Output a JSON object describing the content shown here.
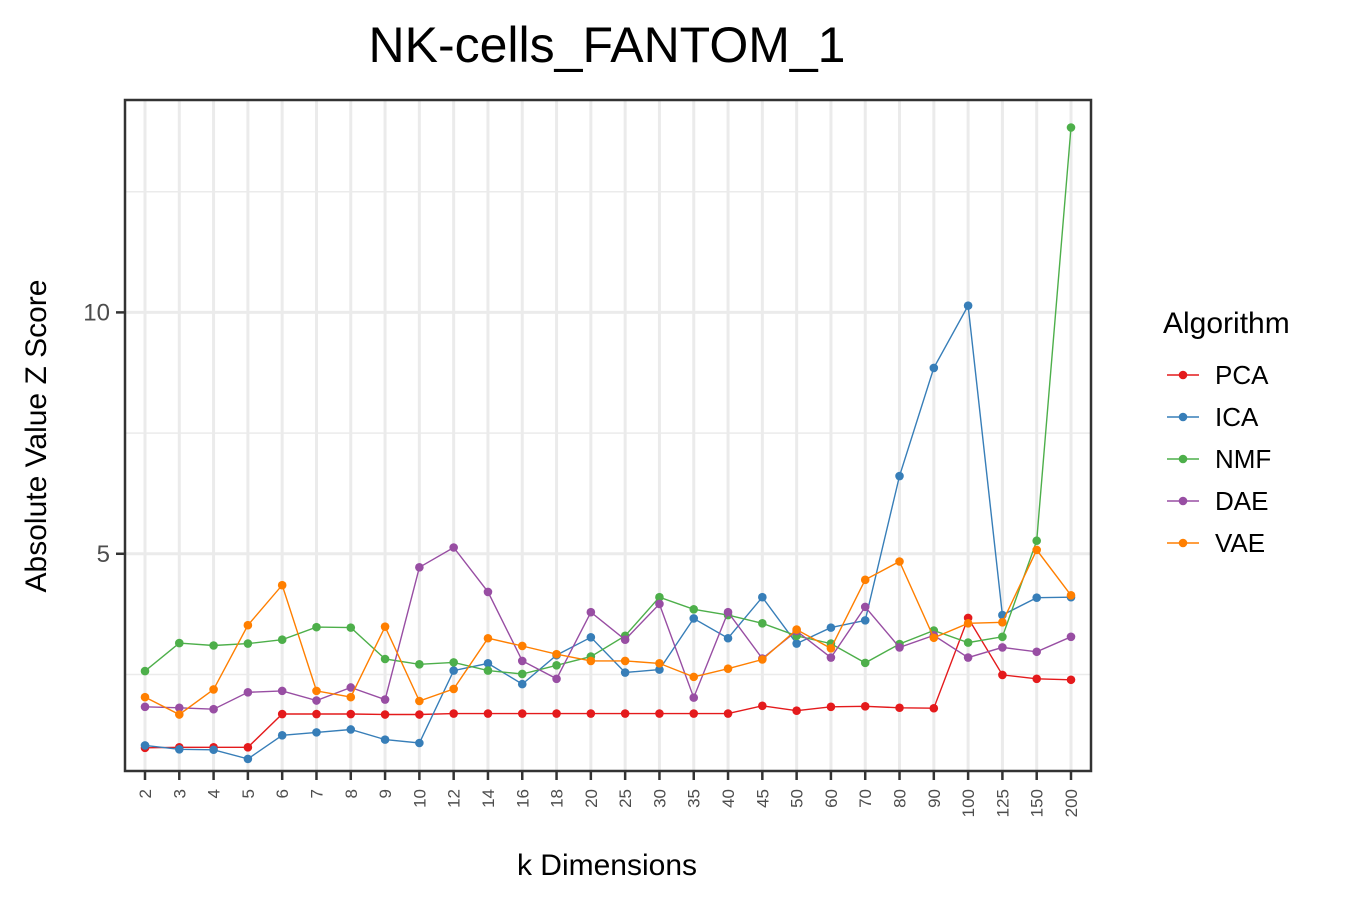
{
  "chart_data": {
    "type": "line",
    "title": "NK-cells_FANTOM_1",
    "xlabel": "k Dimensions",
    "ylabel": "Absolute Value Z Score",
    "categories": [
      "2",
      "3",
      "4",
      "5",
      "6",
      "7",
      "8",
      "9",
      "10",
      "12",
      "14",
      "16",
      "18",
      "20",
      "25",
      "30",
      "35",
      "40",
      "45",
      "50",
      "60",
      "70",
      "80",
      "90",
      "100",
      "125",
      "150",
      "200"
    ],
    "ylim": [
      0.5,
      14.4
    ],
    "yticks": [
      5,
      10
    ],
    "ytick_labels": [
      "5",
      "10"
    ],
    "grid": true,
    "legend": {
      "title": "Algorithm",
      "position": "right"
    },
    "series": [
      {
        "name": "PCA",
        "color": "#e41a1c",
        "values": [
          0.98,
          0.99,
          0.99,
          0.99,
          1.68,
          1.68,
          1.68,
          1.67,
          1.67,
          1.69,
          1.69,
          1.69,
          1.69,
          1.69,
          1.69,
          1.69,
          1.69,
          1.69,
          1.85,
          1.75,
          1.83,
          1.84,
          1.81,
          1.8,
          3.67,
          2.49,
          2.41,
          2.39
        ]
      },
      {
        "name": "ICA",
        "color": "#377eb8",
        "values": [
          1.03,
          0.95,
          0.94,
          0.75,
          1.24,
          1.3,
          1.36,
          1.15,
          1.08,
          2.58,
          2.73,
          2.3,
          2.9,
          3.27,
          2.54,
          2.6,
          3.66,
          3.25,
          4.1,
          3.14,
          3.47,
          3.62,
          6.61,
          8.85,
          10.14,
          3.73,
          4.09,
          4.1
        ]
      },
      {
        "name": "NMF",
        "color": "#4daf4a",
        "values": [
          2.57,
          3.15,
          3.1,
          3.14,
          3.22,
          3.48,
          3.47,
          2.82,
          2.71,
          2.75,
          2.58,
          2.51,
          2.69,
          2.87,
          3.3,
          4.1,
          3.85,
          3.73,
          3.56,
          3.3,
          3.14,
          2.74,
          3.13,
          3.41,
          3.16,
          3.28,
          5.27,
          13.83
        ]
      },
      {
        "name": "DAE",
        "color": "#984ea3",
        "values": [
          1.83,
          1.81,
          1.78,
          2.13,
          2.16,
          1.96,
          2.23,
          1.98,
          4.72,
          5.13,
          4.21,
          2.78,
          2.41,
          3.79,
          3.22,
          3.96,
          2.02,
          3.79,
          2.83,
          3.4,
          2.85,
          3.9,
          3.06,
          3.31,
          2.85,
          3.06,
          2.97,
          3.28
        ]
      },
      {
        "name": "VAE",
        "color": "#ff7f00",
        "values": [
          2.03,
          1.67,
          2.19,
          3.52,
          4.35,
          2.16,
          2.03,
          3.49,
          1.95,
          2.2,
          3.25,
          3.09,
          2.92,
          2.78,
          2.78,
          2.73,
          2.45,
          2.62,
          2.81,
          3.43,
          3.04,
          4.46,
          4.84,
          3.26,
          3.56,
          3.58,
          5.08,
          4.14
        ]
      }
    ]
  }
}
